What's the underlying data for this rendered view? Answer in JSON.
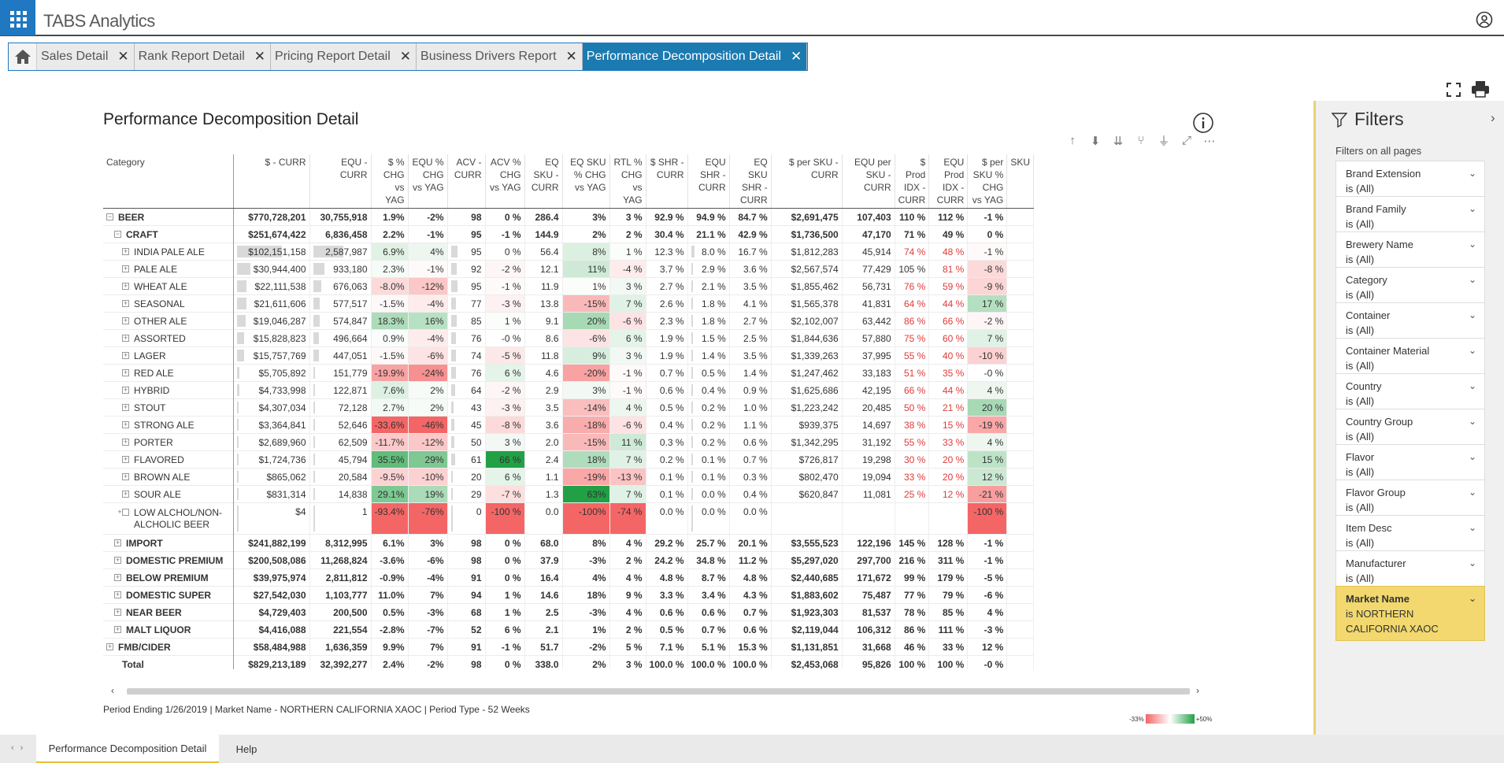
{
  "app": {
    "logo_text": "TABS Analytics"
  },
  "tabs": [
    {
      "label": "Sales Detail",
      "active": false
    },
    {
      "label": "Rank Report Detail",
      "active": false
    },
    {
      "label": "Pricing Report Detail",
      "active": false
    },
    {
      "label": "Business Drivers Report",
      "active": false
    },
    {
      "label": "Performance Decomposition Detail",
      "active": true
    }
  ],
  "report": {
    "title": "Performance Decomposition Detail",
    "footer": "Period Ending 1/26/2019  | Market Name - NORTHERN CALIFORNIA XAOC | Period Type - 52 Weeks",
    "legend_min": "-33%",
    "legend_max": "+50%"
  },
  "matrix": {
    "columns": [
      {
        "label": "Category"
      },
      {
        "label": "$ - CURR"
      },
      {
        "label": "EQU - CURR"
      },
      {
        "label": "$ % CHG vs YAG"
      },
      {
        "label": "EQU % CHG vs YAG"
      },
      {
        "label": "ACV - CURR"
      },
      {
        "label": "ACV % CHG vs YAG"
      },
      {
        "label": "EQ SKU - CURR"
      },
      {
        "label": "EQ SKU % CHG vs YAG"
      },
      {
        "label": "RTL % CHG vs YAG"
      },
      {
        "label": "$ SHR - CURR"
      },
      {
        "label": "EQU SHR - CURR"
      },
      {
        "label": "EQ SKU SHR - CURR"
      },
      {
        "label": "$ per SKU - CURR"
      },
      {
        "label": "EQU per SKU - CURR"
      },
      {
        "label": "$ Prod IDX - CURR"
      },
      {
        "label": "EQU Prod IDX - CURR"
      },
      {
        "label": "$ per SKU % CHG vs YAG"
      },
      {
        "label": "SKU"
      }
    ],
    "rows": [
      {
        "level": 0,
        "exp": "−",
        "name": "BEER",
        "v": [
          "$770,728,201",
          "30,755,918",
          "1.9%",
          "-2%",
          "98",
          "0 %",
          "286.4",
          "3%",
          "3 %",
          "92.9 %",
          "94.9 %",
          "84.7 %",
          "$2,691,475",
          "107,403",
          "110 %",
          "112 %",
          "-1 %",
          ""
        ]
      },
      {
        "level": 1,
        "exp": "−",
        "name": "CRAFT",
        "v": [
          "$251,674,422",
          "6,836,458",
          "2.2%",
          "-1%",
          "95",
          "-1 %",
          "144.9",
          "2%",
          "2 %",
          "30.4 %",
          "21.1 %",
          "42.9 %",
          "$1,736,500",
          "47,170",
          "71 %",
          "49 %",
          "0 %",
          ""
        ]
      },
      {
        "level": 2,
        "exp": "+",
        "name": "INDIA PALE ALE",
        "v": [
          "$102,151,158",
          "2,587,987",
          "6.9%",
          "4%",
          "95",
          "0 %",
          "56.4",
          "8%",
          "1 %",
          "12.3 %",
          "8.0 %",
          "16.7 %",
          "$1,812,283",
          "45,914",
          "74 %",
          "48 %",
          "-1 %",
          ""
        ]
      },
      {
        "level": 2,
        "exp": "+",
        "name": "PALE ALE",
        "v": [
          "$30,944,400",
          "933,180",
          "2.3%",
          "-1%",
          "92",
          "-2 %",
          "12.1",
          "11%",
          "-4 %",
          "3.7 %",
          "2.9 %",
          "3.6 %",
          "$2,567,574",
          "77,429",
          "105 %",
          "81 %",
          "-8 %",
          ""
        ]
      },
      {
        "level": 2,
        "exp": "+",
        "name": "WHEAT ALE",
        "v": [
          "$22,111,538",
          "676,063",
          "-8.0%",
          "-12%",
          "95",
          "-1 %",
          "11.9",
          "1%",
          "3 %",
          "2.7 %",
          "2.1 %",
          "3.5 %",
          "$1,855,462",
          "56,731",
          "76 %",
          "59 %",
          "-9 %",
          ""
        ]
      },
      {
        "level": 2,
        "exp": "+",
        "name": "SEASONAL",
        "v": [
          "$21,611,606",
          "577,517",
          "-1.5%",
          "-4%",
          "77",
          "-3 %",
          "13.8",
          "-15%",
          "7 %",
          "2.6 %",
          "1.8 %",
          "4.1 %",
          "$1,565,378",
          "41,831",
          "64 %",
          "44 %",
          "17 %",
          ""
        ]
      },
      {
        "level": 2,
        "exp": "+",
        "name": "OTHER ALE",
        "v": [
          "$19,046,287",
          "574,847",
          "18.3%",
          "16%",
          "85",
          "1 %",
          "9.1",
          "20%",
          "-6 %",
          "2.3 %",
          "1.8 %",
          "2.7 %",
          "$2,102,007",
          "63,442",
          "86 %",
          "66 %",
          "-2 %",
          ""
        ]
      },
      {
        "level": 2,
        "exp": "+",
        "name": "ASSORTED",
        "v": [
          "$15,828,823",
          "496,664",
          "0.9%",
          "-4%",
          "76",
          "-0 %",
          "8.6",
          "-6%",
          "6 %",
          "1.9 %",
          "1.5 %",
          "2.5 %",
          "$1,844,636",
          "57,880",
          "75 %",
          "60 %",
          "7 %",
          ""
        ]
      },
      {
        "level": 2,
        "exp": "+",
        "name": "LAGER",
        "v": [
          "$15,757,769",
          "447,051",
          "-1.5%",
          "-6%",
          "74",
          "-5 %",
          "11.8",
          "9%",
          "3 %",
          "1.9 %",
          "1.4 %",
          "3.5 %",
          "$1,339,263",
          "37,995",
          "55 %",
          "40 %",
          "-10 %",
          ""
        ]
      },
      {
        "level": 2,
        "exp": "+",
        "name": "RED ALE",
        "v": [
          "$5,705,892",
          "151,779",
          "-19.9%",
          "-24%",
          "76",
          "6 %",
          "4.6",
          "-20%",
          "-1 %",
          "0.7 %",
          "0.5 %",
          "1.4 %",
          "$1,247,462",
          "33,183",
          "51 %",
          "35 %",
          "-0 %",
          ""
        ]
      },
      {
        "level": 2,
        "exp": "+",
        "name": "HYBRID",
        "v": [
          "$4,733,998",
          "122,871",
          "7.6%",
          "2%",
          "64",
          "-2 %",
          "2.9",
          "3%",
          "-1 %",
          "0.6 %",
          "0.4 %",
          "0.9 %",
          "$1,625,686",
          "42,195",
          "66 %",
          "44 %",
          "4 %",
          ""
        ]
      },
      {
        "level": 2,
        "exp": "+",
        "name": "STOUT",
        "v": [
          "$4,307,034",
          "72,128",
          "2.7%",
          "2%",
          "43",
          "-3 %",
          "3.5",
          "-14%",
          "4 %",
          "0.5 %",
          "0.2 %",
          "1.0 %",
          "$1,223,242",
          "20,485",
          "50 %",
          "21 %",
          "20 %",
          ""
        ]
      },
      {
        "level": 2,
        "exp": "+",
        "name": "STRONG ALE",
        "v": [
          "$3,364,841",
          "52,646",
          "-33.6%",
          "-46%",
          "45",
          "-8 %",
          "3.6",
          "-18%",
          "-6 %",
          "0.4 %",
          "0.2 %",
          "1.1 %",
          "$939,375",
          "14,697",
          "38 %",
          "15 %",
          "-19 %",
          ""
        ]
      },
      {
        "level": 2,
        "exp": "+",
        "name": "PORTER",
        "v": [
          "$2,689,960",
          "62,509",
          "-11.7%",
          "-12%",
          "50",
          "3 %",
          "2.0",
          "-15%",
          "11 %",
          "0.3 %",
          "0.2 %",
          "0.6 %",
          "$1,342,295",
          "31,192",
          "55 %",
          "33 %",
          "4 %",
          ""
        ]
      },
      {
        "level": 2,
        "exp": "+",
        "name": "FLAVORED",
        "v": [
          "$1,724,736",
          "45,794",
          "35.5%",
          "29%",
          "61",
          "66 %",
          "2.4",
          "18%",
          "7 %",
          "0.2 %",
          "0.1 %",
          "0.7 %",
          "$726,817",
          "19,298",
          "30 %",
          "20 %",
          "15 %",
          ""
        ]
      },
      {
        "level": 2,
        "exp": "+",
        "name": "BROWN ALE",
        "v": [
          "$865,062",
          "20,584",
          "-9.5%",
          "-10%",
          "20",
          "6 %",
          "1.1",
          "-19%",
          "-13 %",
          "0.1 %",
          "0.1 %",
          "0.3 %",
          "$802,470",
          "19,094",
          "33 %",
          "20 %",
          "12 %",
          ""
        ]
      },
      {
        "level": 2,
        "exp": "+",
        "name": "SOUR ALE",
        "v": [
          "$831,314",
          "14,838",
          "29.1%",
          "19%",
          "29",
          "-7 %",
          "1.3",
          "63%",
          "7 %",
          "0.1 %",
          "0.0 %",
          "0.4 %",
          "$620,847",
          "11,081",
          "25 %",
          "12 %",
          "-21 %",
          ""
        ]
      },
      {
        "level": 2,
        "exp": "+",
        "name": "LOW ALCHOL/NON-ALCHOLIC BEER",
        "v": [
          "$4",
          "1",
          "-93.4%",
          "-76%",
          "0",
          "-100 %",
          "0.0",
          "-100%",
          "-74 %",
          "0.0 %",
          "0.0 %",
          "0.0 %",
          "",
          "",
          "",
          "",
          "-100 %",
          ""
        ]
      },
      {
        "level": 1,
        "exp": "+",
        "name": "IMPORT",
        "v": [
          "$241,882,199",
          "8,312,995",
          "6.1%",
          "3%",
          "98",
          "0 %",
          "68.0",
          "8%",
          "4 %",
          "29.2 %",
          "25.7 %",
          "20.1 %",
          "$3,555,523",
          "122,196",
          "145 %",
          "128 %",
          "-1 %",
          ""
        ]
      },
      {
        "level": 1,
        "exp": "+",
        "name": "DOMESTIC PREMIUM",
        "v": [
          "$200,508,086",
          "11,268,824",
          "-3.6%",
          "-6%",
          "98",
          "0 %",
          "37.9",
          "-3%",
          "2 %",
          "24.2 %",
          "34.8 %",
          "11.2 %",
          "$5,297,020",
          "297,700",
          "216 %",
          "311 %",
          "-1 %",
          ""
        ]
      },
      {
        "level": 1,
        "exp": "+",
        "name": "BELOW PREMIUM",
        "v": [
          "$39,975,974",
          "2,811,812",
          "-0.9%",
          "-4%",
          "91",
          "0 %",
          "16.4",
          "4%",
          "4 %",
          "4.8 %",
          "8.7 %",
          "4.8 %",
          "$2,440,685",
          "171,672",
          "99 %",
          "179 %",
          "-5 %",
          ""
        ]
      },
      {
        "level": 1,
        "exp": "+",
        "name": "DOMESTIC SUPER",
        "v": [
          "$27,542,030",
          "1,103,777",
          "11.0%",
          "7%",
          "94",
          "1 %",
          "14.6",
          "18%",
          "9 %",
          "3.3 %",
          "3.4 %",
          "4.3 %",
          "$1,883,602",
          "75,487",
          "77 %",
          "79 %",
          "-6 %",
          ""
        ]
      },
      {
        "level": 1,
        "exp": "+",
        "name": "NEAR BEER",
        "v": [
          "$4,729,403",
          "200,500",
          "0.5%",
          "-3%",
          "68",
          "1 %",
          "2.5",
          "-3%",
          "4 %",
          "0.6 %",
          "0.6 %",
          "0.7 %",
          "$1,923,303",
          "81,537",
          "78 %",
          "85 %",
          "4 %",
          ""
        ]
      },
      {
        "level": 1,
        "exp": "+",
        "name": "MALT LIQUOR",
        "v": [
          "$4,416,088",
          "221,554",
          "-2.8%",
          "-7%",
          "52",
          "6 %",
          "2.1",
          "1%",
          "2 %",
          "0.5 %",
          "0.7 %",
          "0.6 %",
          "$2,119,044",
          "106,312",
          "86 %",
          "111 %",
          "-3 %",
          ""
        ]
      },
      {
        "level": 0,
        "exp": "+",
        "name": "FMB/CIDER",
        "v": [
          "$58,484,988",
          "1,636,359",
          "9.9%",
          "7%",
          "91",
          "-1 %",
          "51.7",
          "-2%",
          "5 %",
          "7.1 %",
          "5.1 %",
          "15.3 %",
          "$1,131,851",
          "31,668",
          "46 %",
          "33 %",
          "12 %",
          ""
        ]
      },
      {
        "level": -1,
        "exp": "",
        "name": "Total",
        "v": [
          "$829,213,189",
          "32,392,277",
          "2.4%",
          "-2%",
          "98",
          "0 %",
          "338.0",
          "2%",
          "3 %",
          "100.0 %",
          "100.0 %",
          "100.0 %",
          "$2,453,068",
          "95,826",
          "100 %",
          "100 %",
          "-0 %",
          ""
        ]
      }
    ]
  },
  "filters": {
    "title": "Filters",
    "subtitle": "Filters on all pages",
    "cards": [
      {
        "name": "Brand Extension",
        "value": "is (All)"
      },
      {
        "name": "Brand Family",
        "value": "is (All)"
      },
      {
        "name": "Brewery Name",
        "value": "is (All)"
      },
      {
        "name": "Category",
        "value": "is (All)"
      },
      {
        "name": "Container",
        "value": "is (All)"
      },
      {
        "name": "Container Material",
        "value": "is (All)"
      },
      {
        "name": "Country",
        "value": "is (All)"
      },
      {
        "name": "Country Group",
        "value": "is (All)"
      },
      {
        "name": "Flavor",
        "value": "is (All)"
      },
      {
        "name": "Flavor Group",
        "value": "is (All)"
      },
      {
        "name": "Item Desc",
        "value": "is (All)"
      },
      {
        "name": "Manufacturer",
        "value": "is (All)"
      },
      {
        "name": "Market Name",
        "value": "is NORTHERN CALIFORNIA XAOC",
        "highlight": true
      }
    ]
  },
  "pages": [
    {
      "label": "Performance Decomposition Detail",
      "active": true
    },
    {
      "label": "Help",
      "active": false
    }
  ],
  "colors": {
    "accent": "#1f78c1",
    "active_tab": "#1b7ab0",
    "positive": "#22a045",
    "negative": "#f46666",
    "filter_highlight": "#f2d86e"
  }
}
